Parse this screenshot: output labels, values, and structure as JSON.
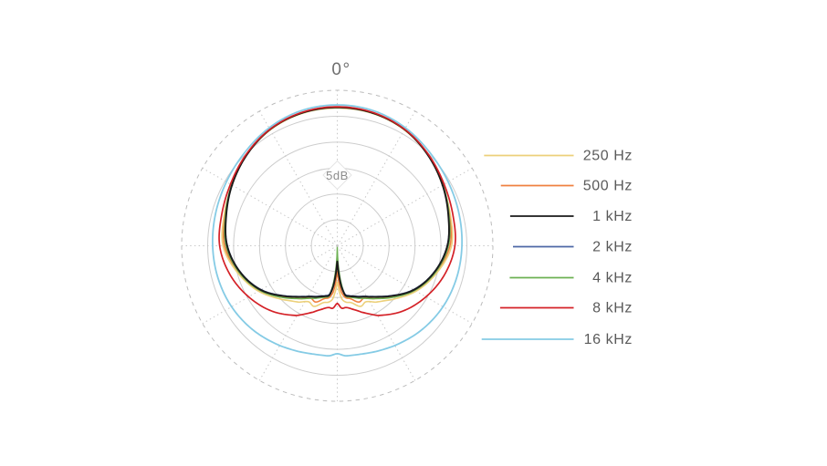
{
  "chart_data": {
    "type": "polar",
    "description_visible_labels_only": "microphone polar pattern, mirror-symmetric about 0°–180° axis",
    "top_label": "0°",
    "ring_label": "5dB",
    "db_per_ring": 5,
    "rings": 5,
    "outer_ring_dashed": true,
    "radial_step_deg": 30,
    "radial_unit": "dB",
    "angle_unit": "deg",
    "symmetric_mirror": true,
    "series": [
      {
        "label": "250 Hz",
        "color": "#ecd07a",
        "points_deg_db": [
          [
            0,
            -0.35
          ],
          [
            15,
            -0.5
          ],
          [
            30,
            -1.1
          ],
          [
            45,
            -2.2
          ],
          [
            60,
            -3.5
          ],
          [
            75,
            -4.35
          ],
          [
            90,
            -4.9
          ],
          [
            105,
            -7.0
          ],
          [
            120,
            -9.4
          ],
          [
            135,
            -12.2
          ],
          [
            146,
            -13.8
          ],
          [
            153,
            -14.8
          ],
          [
            159,
            -14.4
          ],
          [
            166,
            -15.6
          ],
          [
            171,
            -15.9
          ],
          [
            175,
            -16.6
          ],
          [
            178,
            -18.4
          ],
          [
            180,
            -19.9
          ]
        ]
      },
      {
        "label": "500 Hz",
        "color": "#ef8040",
        "points_deg_db": [
          [
            0,
            -0.3
          ],
          [
            15,
            -0.45
          ],
          [
            30,
            -1.05
          ],
          [
            45,
            -2.15
          ],
          [
            60,
            -3.45
          ],
          [
            75,
            -4.55
          ],
          [
            90,
            -5.2
          ],
          [
            105,
            -7.3
          ],
          [
            120,
            -9.7
          ],
          [
            135,
            -12.8
          ],
          [
            146,
            -14.6
          ],
          [
            153,
            -15.6
          ],
          [
            159,
            -15.3
          ],
          [
            166,
            -16.4
          ],
          [
            171,
            -16.8
          ],
          [
            175,
            -18.0
          ],
          [
            178,
            -20.3
          ],
          [
            180,
            -22.0
          ]
        ]
      },
      {
        "label": "1 kHz",
        "color": "#1a1a1a",
        "points_deg_db": [
          [
            0,
            -0.2
          ],
          [
            15,
            -0.4
          ],
          [
            30,
            -1.0
          ],
          [
            45,
            -2.2
          ],
          [
            60,
            -3.5
          ],
          [
            75,
            -4.75
          ],
          [
            90,
            -5.7
          ],
          [
            105,
            -7.5
          ],
          [
            120,
            -9.9
          ],
          [
            135,
            -13.1
          ],
          [
            148,
            -15.3
          ],
          [
            158,
            -16.3
          ],
          [
            166,
            -16.9
          ],
          [
            171,
            -17.3
          ],
          [
            174.5,
            -19.2
          ],
          [
            177.5,
            -21.9
          ],
          [
            180,
            -23.9
          ]
        ]
      },
      {
        "label": "2 kHz",
        "color": "#4e68a6",
        "points_deg_db": [
          [
            0,
            -0.15
          ],
          [
            15,
            -0.35
          ],
          [
            30,
            -0.95
          ],
          [
            45,
            -2.1
          ],
          [
            60,
            -3.45
          ],
          [
            75,
            -4.7
          ],
          [
            90,
            -5.75
          ],
          [
            105,
            -7.55
          ],
          [
            120,
            -10.0
          ],
          [
            135,
            -13.2
          ],
          [
            148,
            -15.4
          ],
          [
            158,
            -16.4
          ],
          [
            166,
            -17.0
          ],
          [
            171,
            -17.5
          ],
          [
            174.5,
            -19.8
          ],
          [
            177.5,
            -22.6
          ],
          [
            180,
            -24.9
          ]
        ]
      },
      {
        "label": "4 kHz",
        "color": "#6cb052",
        "points_deg_db": [
          [
            0,
            -0.25
          ],
          [
            15,
            -0.45
          ],
          [
            30,
            -1.0
          ],
          [
            45,
            -2.15
          ],
          [
            60,
            -3.4
          ],
          [
            75,
            -4.6
          ],
          [
            90,
            -5.5
          ],
          [
            105,
            -7.3
          ],
          [
            120,
            -9.7
          ],
          [
            135,
            -12.7
          ],
          [
            148,
            -14.9
          ],
          [
            158,
            -16.0
          ],
          [
            166,
            -16.7
          ],
          [
            171,
            -17.2
          ],
          [
            174.5,
            -20.0
          ],
          [
            177.5,
            -23.6
          ],
          [
            180,
            -26.6
          ]
        ]
      },
      {
        "label": "8 kHz",
        "color": "#d42127",
        "points_deg_db": [
          [
            0,
            -0.1
          ],
          [
            15,
            -0.3
          ],
          [
            30,
            -0.95
          ],
          [
            45,
            -2.05
          ],
          [
            60,
            -3.15
          ],
          [
            75,
            -3.85
          ],
          [
            90,
            -4.25
          ],
          [
            105,
            -5.5
          ],
          [
            120,
            -7.2
          ],
          [
            135,
            -9.1
          ],
          [
            150,
            -11.4
          ],
          [
            160,
            -13.3
          ],
          [
            167,
            -14.4
          ],
          [
            172,
            -14.9
          ],
          [
            176,
            -14.85
          ],
          [
            180,
            -15.8
          ]
        ]
      },
      {
        "label": "16 kHz",
        "color": "#85cbe5",
        "points_deg_db": [
          [
            0,
            0.25
          ],
          [
            15,
            0.05
          ],
          [
            30,
            -0.65
          ],
          [
            45,
            -1.6
          ],
          [
            60,
            -2.25
          ],
          [
            75,
            -2.65
          ],
          [
            90,
            -2.9
          ],
          [
            105,
            -3.1
          ],
          [
            120,
            -3.4
          ],
          [
            135,
            -3.95
          ],
          [
            150,
            -4.7
          ],
          [
            160,
            -5.2
          ],
          [
            167,
            -5.5
          ],
          [
            172,
            -5.6
          ],
          [
            176,
            -5.65
          ],
          [
            180,
            -6.1
          ]
        ]
      }
    ],
    "legend": {
      "position": "right",
      "items": [
        "250 Hz",
        "500 Hz",
        "1 kHz",
        "2 kHz",
        "4 kHz",
        "8 kHz",
        "16 kHz"
      ]
    }
  },
  "style": {
    "background": "#ffffff",
    "ring_color": "#cdcdcd",
    "outer_ring_color": "#bcbcbc",
    "radial_color": "#c8c8c8",
    "scale_label_color": "#8c8c8c",
    "diamond_border_color": "#e4e4e4",
    "angle_label_color": "#6e6e6e",
    "legend_text_color": "#5a5a5a"
  }
}
